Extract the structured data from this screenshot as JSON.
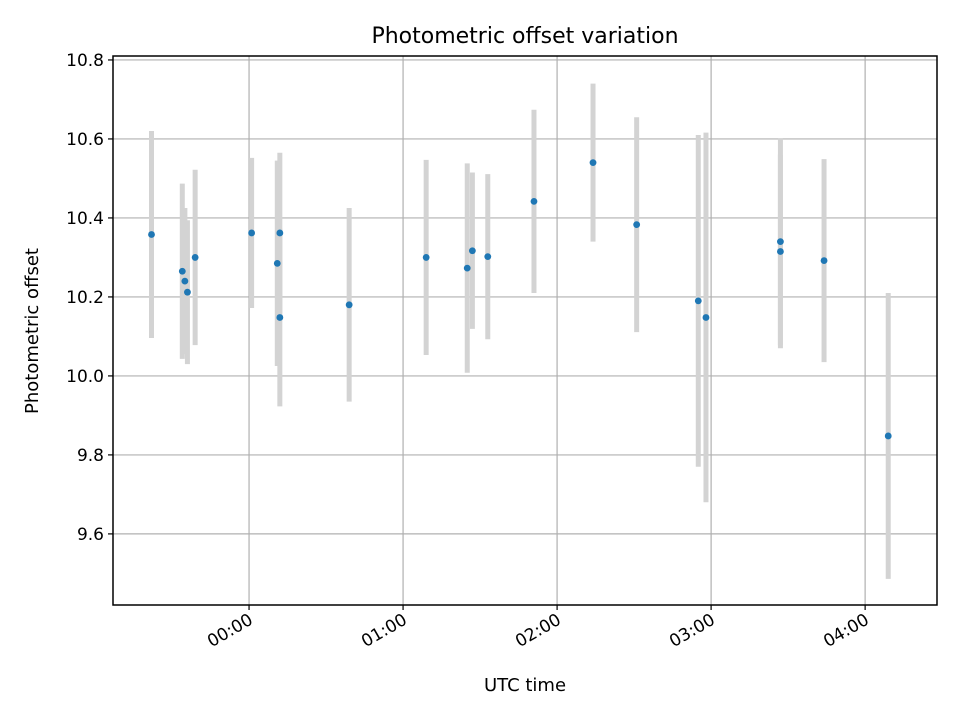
{
  "chart_data": {
    "type": "scatter",
    "title": "Photometric offset variation",
    "xlabel": "UTC time",
    "ylabel": "Photometric offset",
    "x_axis": "time",
    "xlim": [
      "23:07",
      "04:28"
    ],
    "ylim": [
      9.42,
      10.81
    ],
    "x_ticks": [
      "00:00",
      "01:00",
      "02:00",
      "03:00",
      "04:00"
    ],
    "x_tick_rotation_deg": 30,
    "y_ticks": [
      9.6,
      9.8,
      10.0,
      10.2,
      10.4,
      10.6,
      10.8
    ],
    "y_tick_labels": [
      "9.6",
      "9.8",
      "10.0",
      "10.2",
      "10.4",
      "10.6",
      "10.8"
    ],
    "grid": true,
    "marker_color": "#1f77b4",
    "errorbar_color": "#d3d3d3",
    "points": [
      {
        "x": "23:22",
        "y": 10.358,
        "yerr": 0.262
      },
      {
        "x": "23:34",
        "y": 10.265,
        "yerr": 0.222
      },
      {
        "x": "23:35",
        "y": 10.24,
        "yerr": 0.185
      },
      {
        "x": "23:36",
        "y": 10.212,
        "yerr": 0.182
      },
      {
        "x": "23:39",
        "y": 10.3,
        "yerr": 0.222
      },
      {
        "x": "00:01",
        "y": 10.362,
        "yerr": 0.19
      },
      {
        "x": "00:11",
        "y": 10.285,
        "yerr": 0.26
      },
      {
        "x": "00:12",
        "y": 10.148,
        "yerr": 0.225
      },
      {
        "x": "00:12",
        "y": 10.362,
        "yerr": 0.203
      },
      {
        "x": "00:39",
        "y": 10.18,
        "yerr": 0.245
      },
      {
        "x": "01:09",
        "y": 10.3,
        "yerr": 0.247
      },
      {
        "x": "01:25",
        "y": 10.273,
        "yerr": 0.265
      },
      {
        "x": "01:27",
        "y": 10.317,
        "yerr": 0.198
      },
      {
        "x": "01:33",
        "y": 10.302,
        "yerr": 0.209
      },
      {
        "x": "01:51",
        "y": 10.442,
        "yerr": 0.232
      },
      {
        "x": "02:14",
        "y": 10.54,
        "yerr": 0.2
      },
      {
        "x": "02:31",
        "y": 10.383,
        "yerr": 0.272
      },
      {
        "x": "02:55",
        "y": 10.19,
        "yerr": 0.42
      },
      {
        "x": "02:58",
        "y": 10.148,
        "yerr": 0.468
      },
      {
        "x": "03:27",
        "y": 10.34,
        "yerr": 0.262
      },
      {
        "x": "03:27",
        "y": 10.315,
        "yerr": 0.245
      },
      {
        "x": "03:44",
        "y": 10.292,
        "yerr": 0.257
      },
      {
        "x": "04:09",
        "y": 9.848,
        "yerr": 0.362
      }
    ]
  }
}
